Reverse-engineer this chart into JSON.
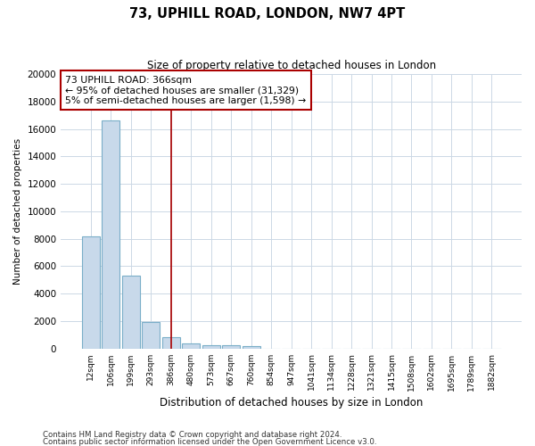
{
  "title1": "73, UPHILL ROAD, LONDON, NW7 4PT",
  "title2": "Size of property relative to detached houses in London",
  "xlabel": "Distribution of detached houses by size in London",
  "ylabel": "Number of detached properties",
  "footer1": "Contains HM Land Registry data © Crown copyright and database right 2024.",
  "footer2": "Contains public sector information licensed under the Open Government Licence v3.0.",
  "annotation_line1": "73 UPHILL ROAD: 366sqm",
  "annotation_line2": "← 95% of detached houses are smaller (31,329)",
  "annotation_line3": "5% of semi-detached houses are larger (1,598) →",
  "vline_x": 4,
  "bar_color": "#c8d9ea",
  "bar_edge_color": "#7aaec8",
  "vline_color": "#aa0000",
  "annotation_box_color": "#ffffff",
  "annotation_box_edge": "#aa0000",
  "categories": [
    "12sqm",
    "106sqm",
    "199sqm",
    "293sqm",
    "386sqm",
    "480sqm",
    "573sqm",
    "667sqm",
    "760sqm",
    "854sqm",
    "947sqm",
    "1041sqm",
    "1134sqm",
    "1228sqm",
    "1321sqm",
    "1415sqm",
    "1508sqm",
    "1602sqm",
    "1695sqm",
    "1789sqm",
    "1882sqm"
  ],
  "values": [
    8150,
    16600,
    5300,
    1900,
    820,
    360,
    220,
    200,
    150,
    0,
    0,
    0,
    0,
    0,
    0,
    0,
    0,
    0,
    0,
    0,
    0
  ],
  "ylim": [
    0,
    20000
  ],
  "yticks": [
    0,
    2000,
    4000,
    6000,
    8000,
    10000,
    12000,
    14000,
    16000,
    18000,
    20000
  ],
  "background_color": "#ffffff",
  "grid_color": "#ccd8e5"
}
